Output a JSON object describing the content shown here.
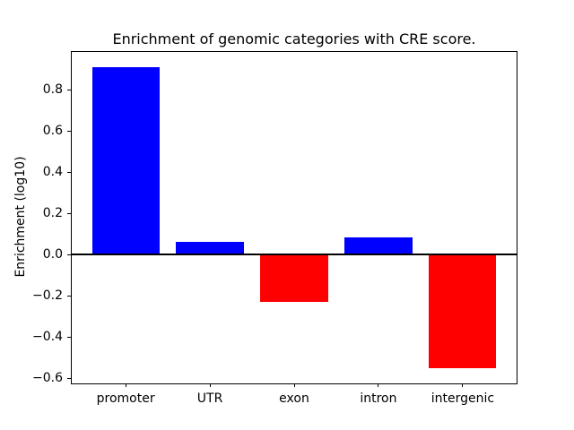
{
  "chart_data": {
    "type": "bar",
    "title": "Enrichment of genomic categories with CRE score.",
    "xlabel": "",
    "ylabel": "Enrichment (log10)",
    "categories": [
      "promoter",
      "UTR",
      "exon",
      "intron",
      "intergenic"
    ],
    "values": [
      0.91,
      0.06,
      -0.23,
      0.085,
      -0.55
    ],
    "bar_colors": [
      "#0000ff",
      "#0000ff",
      "#ff0000",
      "#0000ff",
      "#ff0000"
    ],
    "positive_color": "#0000ff",
    "negative_color": "#ff0000",
    "bar_width": 0.8,
    "xlim": [
      -0.64,
      4.64
    ],
    "ylim": [
      -0.623,
      0.983
    ],
    "yticks": [
      0.8,
      0.6,
      0.4,
      0.2,
      0.0,
      -0.2,
      -0.4,
      -0.6
    ],
    "ytick_labels": [
      "0.8",
      "0.6",
      "0.4",
      "0.2",
      "0.0",
      "−0.2",
      "−0.4",
      "−0.6"
    ],
    "zero_line": true,
    "grid": false,
    "legend": null,
    "axis_color": "#000000",
    "background_color": "#ffffff"
  }
}
